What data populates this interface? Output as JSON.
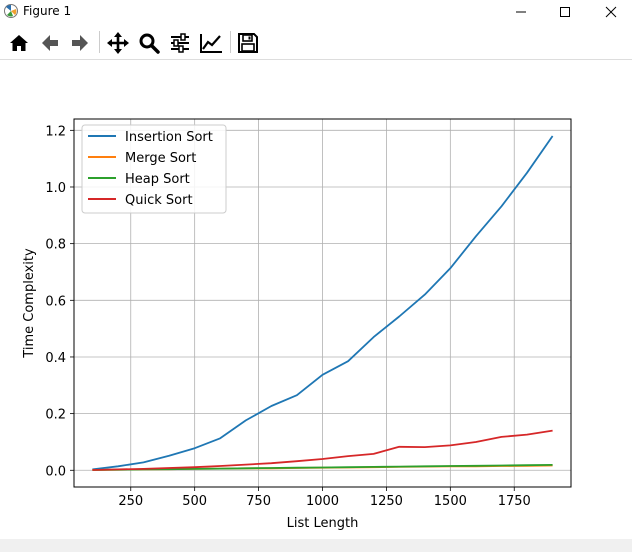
{
  "window": {
    "title": "Figure 1"
  },
  "toolbar": {
    "buttons": [
      {
        "name": "home-button",
        "icon": "home-icon"
      },
      {
        "name": "back-button",
        "icon": "arrow-left-icon"
      },
      {
        "name": "forward-button",
        "icon": "arrow-right-icon"
      },
      {
        "name": "pan-button",
        "icon": "move-icon"
      },
      {
        "name": "zoom-button",
        "icon": "magnifier-icon"
      },
      {
        "name": "configure-subplots-button",
        "icon": "sliders-icon"
      },
      {
        "name": "edit-axis-button",
        "icon": "line-chart-icon"
      },
      {
        "name": "save-button",
        "icon": "floppy-disk-icon"
      }
    ]
  },
  "chart_data": {
    "type": "line",
    "title": "",
    "xlabel": "List Length",
    "ylabel": "Time Complexity",
    "xlim": [
      28,
      1972
    ],
    "ylim": [
      -0.059,
      1.24
    ],
    "xticks": [
      250,
      500,
      750,
      1000,
      1250,
      1500,
      1750
    ],
    "xtick_labels": [
      "250",
      "500",
      "750",
      "1000",
      "1250",
      "1500",
      "1750"
    ],
    "yticks": [
      0.0,
      0.2,
      0.4,
      0.6,
      0.8,
      1.0,
      1.2
    ],
    "ytick_labels": [
      "0.0",
      "0.2",
      "0.4",
      "0.6",
      "0.8",
      "1.0",
      "1.2"
    ],
    "grid": true,
    "legend_position": "top-left",
    "x": [
      100,
      200,
      300,
      400,
      500,
      600,
      700,
      800,
      900,
      1000,
      1100,
      1200,
      1300,
      1400,
      1500,
      1600,
      1700,
      1800,
      1900
    ],
    "series": [
      {
        "name": "Insertion Sort",
        "color": "#1f77b4",
        "values": [
          0.003,
          0.014,
          0.028,
          0.051,
          0.078,
          0.113,
          0.176,
          0.227,
          0.265,
          0.337,
          0.385,
          0.47,
          0.543,
          0.62,
          0.713,
          0.826,
          0.932,
          1.05,
          1.18
        ]
      },
      {
        "name": "Merge Sort",
        "color": "#ff7f0e",
        "values": [
          0.001,
          0.002,
          0.003,
          0.004,
          0.005,
          0.006,
          0.007,
          0.007,
          0.008,
          0.009,
          0.01,
          0.011,
          0.012,
          0.013,
          0.014,
          0.014,
          0.015,
          0.016,
          0.017
        ]
      },
      {
        "name": "Heap Sort",
        "color": "#2ca02c",
        "values": [
          0.001,
          0.002,
          0.003,
          0.004,
          0.005,
          0.006,
          0.007,
          0.008,
          0.009,
          0.01,
          0.011,
          0.012,
          0.013,
          0.014,
          0.015,
          0.016,
          0.017,
          0.018,
          0.019
        ]
      },
      {
        "name": "Quick Sort",
        "color": "#d62728",
        "values": [
          0.001,
          0.003,
          0.005,
          0.008,
          0.011,
          0.015,
          0.02,
          0.025,
          0.032,
          0.04,
          0.05,
          0.058,
          0.083,
          0.082,
          0.088,
          0.1,
          0.118,
          0.126,
          0.14
        ]
      }
    ]
  }
}
